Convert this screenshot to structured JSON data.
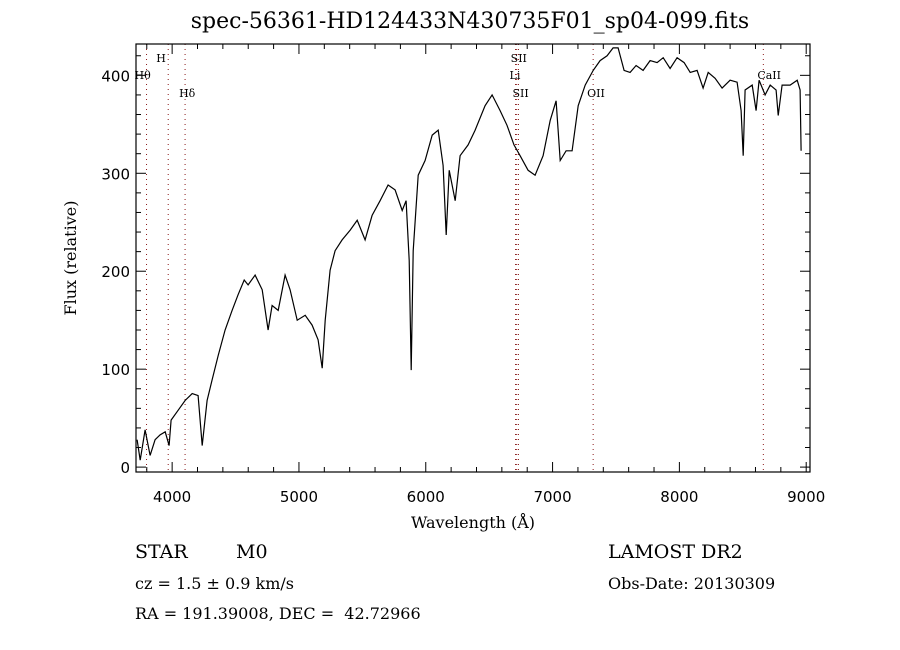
{
  "chart_data": {
    "type": "line",
    "title": "spec-56361-HD124433N430735F01_sp04-099.fits",
    "xlabel": "Wavelength (Å)",
    "ylabel": "Flux (relative)",
    "xlim": [
      3715,
      9030
    ],
    "ylim": [
      -5,
      432
    ],
    "xticks": [
      4000,
      5000,
      6000,
      7000,
      8000,
      9000
    ],
    "yticks": [
      0,
      100,
      200,
      300,
      400
    ],
    "xtick_labels": [
      "4000",
      "5000",
      "6000",
      "7000",
      "8000",
      "9000"
    ],
    "ytick_labels": [
      "0",
      "100",
      "200",
      "300",
      "400"
    ],
    "grid": false,
    "series": [
      {
        "name": "spectrum",
        "color": "#000000",
        "x": [
          3724,
          3748,
          3787,
          3826,
          3866,
          3905,
          3945,
          3976,
          3992,
          4047,
          4102,
          4158,
          4205,
          4237,
          4276,
          4315,
          4363,
          4418,
          4473,
          4520,
          4568,
          4599,
          4654,
          4710,
          4757,
          4788,
          4836,
          4891,
          4930,
          4986,
          5049,
          5104,
          5151,
          5183,
          5207,
          5246,
          5285,
          5340,
          5404,
          5459,
          5522,
          5577,
          5640,
          5703,
          5758,
          5814,
          5845,
          5869,
          5885,
          5901,
          5940,
          5995,
          6051,
          6098,
          6137,
          6161,
          6185,
          6232,
          6271,
          6334,
          6389,
          6468,
          6523,
          6586,
          6641,
          6696,
          6744,
          6807,
          6862,
          6925,
          6981,
          7028,
          7060,
          7107,
          7154,
          7202,
          7257,
          7320,
          7375,
          7430,
          7477,
          7517,
          7564,
          7611,
          7659,
          7714,
          7769,
          7824,
          7872,
          7927,
          7982,
          8037,
          8085,
          8140,
          8187,
          8227,
          8282,
          8337,
          8400,
          8455,
          8487,
          8503,
          8518,
          8574,
          8605,
          8629,
          8676,
          8716,
          8763,
          8779,
          8810,
          8873,
          8929,
          8952,
          8960
        ],
        "y": [
          28,
          7,
          38,
          12,
          28,
          33,
          36,
          22,
          48,
          58,
          68,
          75,
          73,
          22,
          68,
          89,
          114,
          140,
          160,
          176,
          191,
          186,
          196,
          181,
          140,
          165,
          160,
          196,
          181,
          150,
          155,
          145,
          130,
          101,
          150,
          201,
          221,
          232,
          242,
          252,
          232,
          257,
          272,
          288,
          283,
          262,
          272,
          211,
          99,
          221,
          298,
          313,
          339,
          344,
          308,
          237,
          303,
          272,
          318,
          329,
          344,
          369,
          380,
          364,
          349,
          329,
          318,
          303,
          298,
          318,
          354,
          374,
          313,
          323,
          323,
          369,
          390,
          405,
          415,
          420,
          428,
          428,
          405,
          403,
          410,
          405,
          415,
          413,
          418,
          407,
          418,
          413,
          403,
          405,
          387,
          403,
          397,
          387,
          395,
          393,
          364,
          318,
          385,
          390,
          364,
          395,
          380,
          390,
          385,
          359,
          390,
          390,
          395,
          385,
          323
        ]
      }
    ],
    "line_markers": {
      "color": "#8b1a1a",
      "lines": [
        {
          "label": "Hθ",
          "x": 3798,
          "row": 2
        },
        {
          "label": "H",
          "x": 3969,
          "row": 1
        },
        {
          "label": "Hδ",
          "x": 4102,
          "row": 3
        },
        {
          "label": "SII",
          "x": 6717,
          "row": 1
        },
        {
          "label": "Li",
          "x": 6708,
          "row": 2
        },
        {
          "label": "SII",
          "x": 6731,
          "row": 3
        },
        {
          "label": "OII",
          "x": 7320,
          "row": 3
        },
        {
          "label": "CaII",
          "x": 8662,
          "row": 2
        }
      ]
    }
  },
  "info": {
    "class": "STAR",
    "subclass": "M0",
    "cz": "cz = 1.5 ± 0.9 km/s",
    "coords": "RA = 191.39008, DEC =  42.72966",
    "survey": "LAMOST DR2",
    "obs_date": "Obs-Date: 20130309"
  }
}
